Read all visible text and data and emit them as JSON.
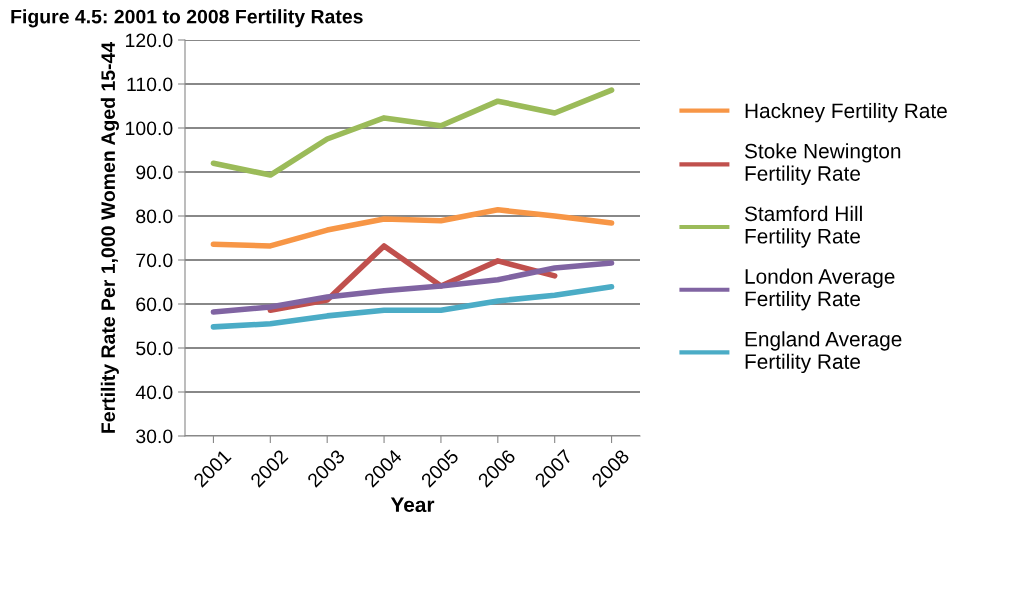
{
  "chart_data": {
    "type": "line",
    "title": "Figure 4.5: 2001 to 2008 Fertility Rates",
    "xlabel": "Year",
    "ylabel": "Fertility Rate Per 1,000 Women Aged 15-44",
    "categories": [
      "2001",
      "2002",
      "2003",
      "2004",
      "2005",
      "2006",
      "2007",
      "2008"
    ],
    "series": [
      {
        "name": "Hackney Fertility Rate",
        "color": "#f79646",
        "values": [
          73.6,
          73.2,
          76.8,
          79.3,
          78.9,
          81.4,
          80.0,
          78.4
        ]
      },
      {
        "name": "Stoke Newington Fertility Rate",
        "color": "#c0504d",
        "values": [
          null,
          58.6,
          60.9,
          73.2,
          64.1,
          69.8,
          66.4,
          null
        ]
      },
      {
        "name": "Stamford Hill Fertility Rate",
        "color": "#9bbb59",
        "values": [
          92.0,
          89.3,
          97.5,
          102.3,
          100.5,
          106.1,
          103.4,
          108.6
        ]
      },
      {
        "name": "London Average Fertility Rate",
        "color": "#8064a2",
        "values": [
          58.2,
          59.3,
          61.6,
          63.0,
          64.1,
          65.5,
          68.2,
          69.3
        ]
      },
      {
        "name": "England Average Fertility Rate",
        "color": "#4bacc6",
        "values": [
          54.8,
          55.5,
          57.3,
          58.6,
          58.6,
          60.7,
          62.0,
          63.9
        ]
      }
    ],
    "ylim": [
      30,
      120
    ],
    "yticks": [
      {
        "value": 30,
        "label": "30.0"
      },
      {
        "value": 40,
        "label": "40.0"
      },
      {
        "value": 50,
        "label": "50.0"
      },
      {
        "value": 60,
        "label": "60.0"
      },
      {
        "value": 70,
        "label": "70.0"
      },
      {
        "value": 80,
        "label": "80.0"
      },
      {
        "value": 90,
        "label": "90.0"
      },
      {
        "value": 100,
        "label": "100.0"
      },
      {
        "value": 110,
        "label": "110.0"
      },
      {
        "value": 120,
        "label": "120.0"
      }
    ],
    "grid": "y",
    "legend": "right",
    "marker": "none",
    "line_style": "solid"
  }
}
